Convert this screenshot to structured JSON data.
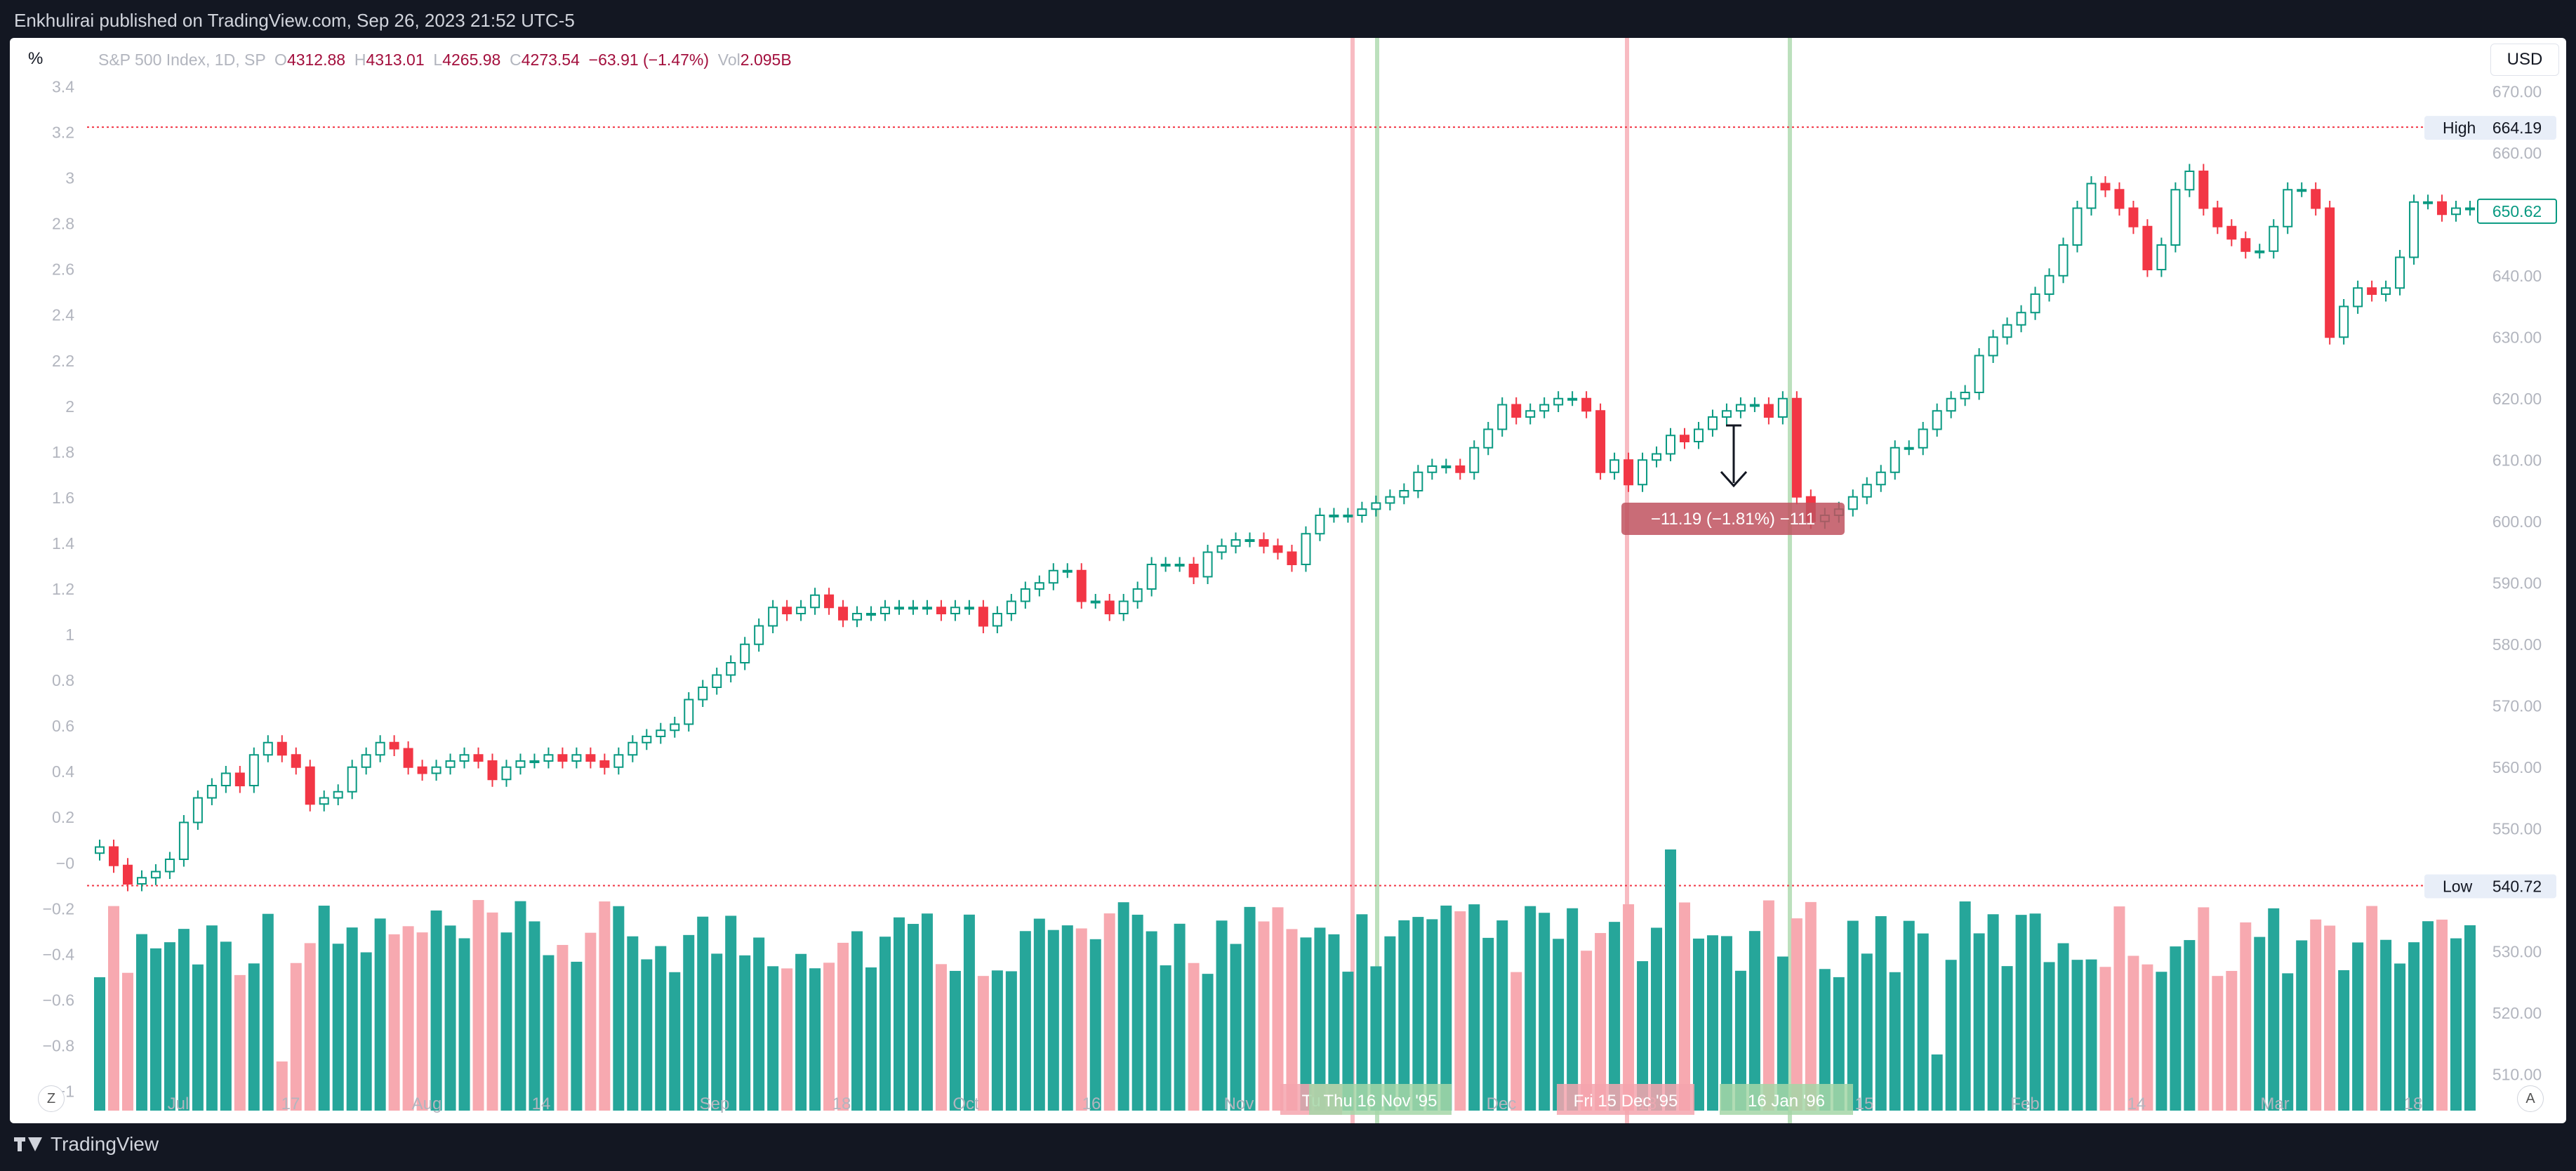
{
  "header": {
    "published_text": "Enkhulirai published on TradingView.com, Sep 26, 2023 21:52 UTC-5"
  },
  "footer": {
    "brand": "TradingView"
  },
  "toolbar": {
    "percent_label": "%",
    "currency_label": "USD",
    "auto_label": "A",
    "zoom_label": "Z"
  },
  "legend": {
    "symbol": "S&P 500 Index, 1D, SP",
    "open_key": "O",
    "open": "4312.88",
    "high_key": "H",
    "high": "4313.01",
    "low_key": "L",
    "low": "4265.98",
    "close_key": "C",
    "close": "4273.54",
    "change": "−63.91 (−1.47%)",
    "vol_key": "Vol",
    "vol": "2.095B"
  },
  "measure": {
    "label": "−11.19 (−1.81%) −111"
  },
  "date_tags": {
    "red1": "Tu",
    "green1": "Thu 16 Nov '95",
    "red2": "Fri 15 Dec '95",
    "green2": "16 Jan '96"
  },
  "colors": {
    "up": "#089981",
    "down": "#f23645",
    "vol_up": "#26a69a",
    "vol_down": "#f7a9b0",
    "band_red": "#f5a4ae",
    "band_green": "#a5d6a7"
  },
  "chart_data": {
    "type": "candlestick",
    "title": "S&P 500 Index, 1D, SP",
    "y_right": {
      "range": [
        505,
        673
      ],
      "ticks": [
        "510.00",
        "520.00",
        "530.00",
        "540.00",
        "550.00",
        "560.00",
        "570.00",
        "580.00",
        "590.00",
        "600.00",
        "610.00",
        "620.00",
        "630.00",
        "640.00",
        "650.00",
        "660.00",
        "670.00"
      ]
    },
    "y_left": {
      "range": [
        -1.06,
        3.46
      ],
      "ticks": [
        "−1",
        "−0.8",
        "−0.6",
        "−0.4",
        "−0.2",
        "−0",
        "0.2",
        "0.4",
        "0.6",
        "0.8",
        "1",
        "1.2",
        "1.4",
        "1.6",
        "1.8",
        "2",
        "2.2",
        "2.4",
        "2.6",
        "2.8",
        "3",
        "3.2",
        "3.4"
      ]
    },
    "x_ticks": [
      "Jul",
      "17",
      "Aug",
      "14",
      "Sep",
      "18",
      "Oct",
      "16",
      "Nov",
      "Dec",
      "18",
      "15",
      "Feb",
      "14",
      "Mar",
      "18"
    ],
    "high_label": "High",
    "high_value": "664.19",
    "low_label": "Low",
    "low_value": "540.72",
    "last_value": "650.62",
    "close": [
      547,
      544,
      541,
      542,
      543,
      545,
      551,
      555,
      557,
      559,
      557,
      562,
      564,
      562,
      560,
      554,
      555,
      556,
      560,
      562,
      564,
      563,
      560,
      559,
      560,
      561,
      562,
      561,
      558,
      560,
      561,
      561,
      562,
      561,
      562,
      561,
      560,
      562,
      564,
      565,
      566,
      567,
      571,
      573,
      575,
      577,
      580,
      583,
      586,
      585,
      586,
      588,
      586,
      584,
      585,
      585,
      586,
      586,
      586,
      586,
      585,
      586,
      586,
      583,
      585,
      587,
      589,
      590,
      592,
      592,
      587,
      587,
      585,
      587,
      589,
      593,
      593,
      593,
      591,
      595,
      596,
      597,
      597,
      596,
      595,
      593,
      598,
      601,
      601,
      601,
      602,
      603,
      604,
      605,
      608,
      609,
      609,
      608,
      612,
      615,
      619,
      617,
      618,
      619,
      620,
      620,
      618,
      608,
      610,
      606,
      610,
      611,
      614,
      613,
      615,
      617,
      618,
      619,
      619,
      617,
      620,
      604,
      600,
      601,
      602,
      604,
      606,
      608,
      612,
      612,
      615,
      618,
      620,
      621,
      627,
      630,
      632,
      634,
      637,
      640,
      645,
      651,
      655,
      654,
      651,
      648,
      641,
      645,
      654,
      657,
      651,
      648,
      646,
      644,
      644,
      648,
      654,
      654,
      651,
      630,
      635,
      638,
      637,
      638,
      643,
      652,
      652,
      650,
      651,
      651
    ]
  }
}
